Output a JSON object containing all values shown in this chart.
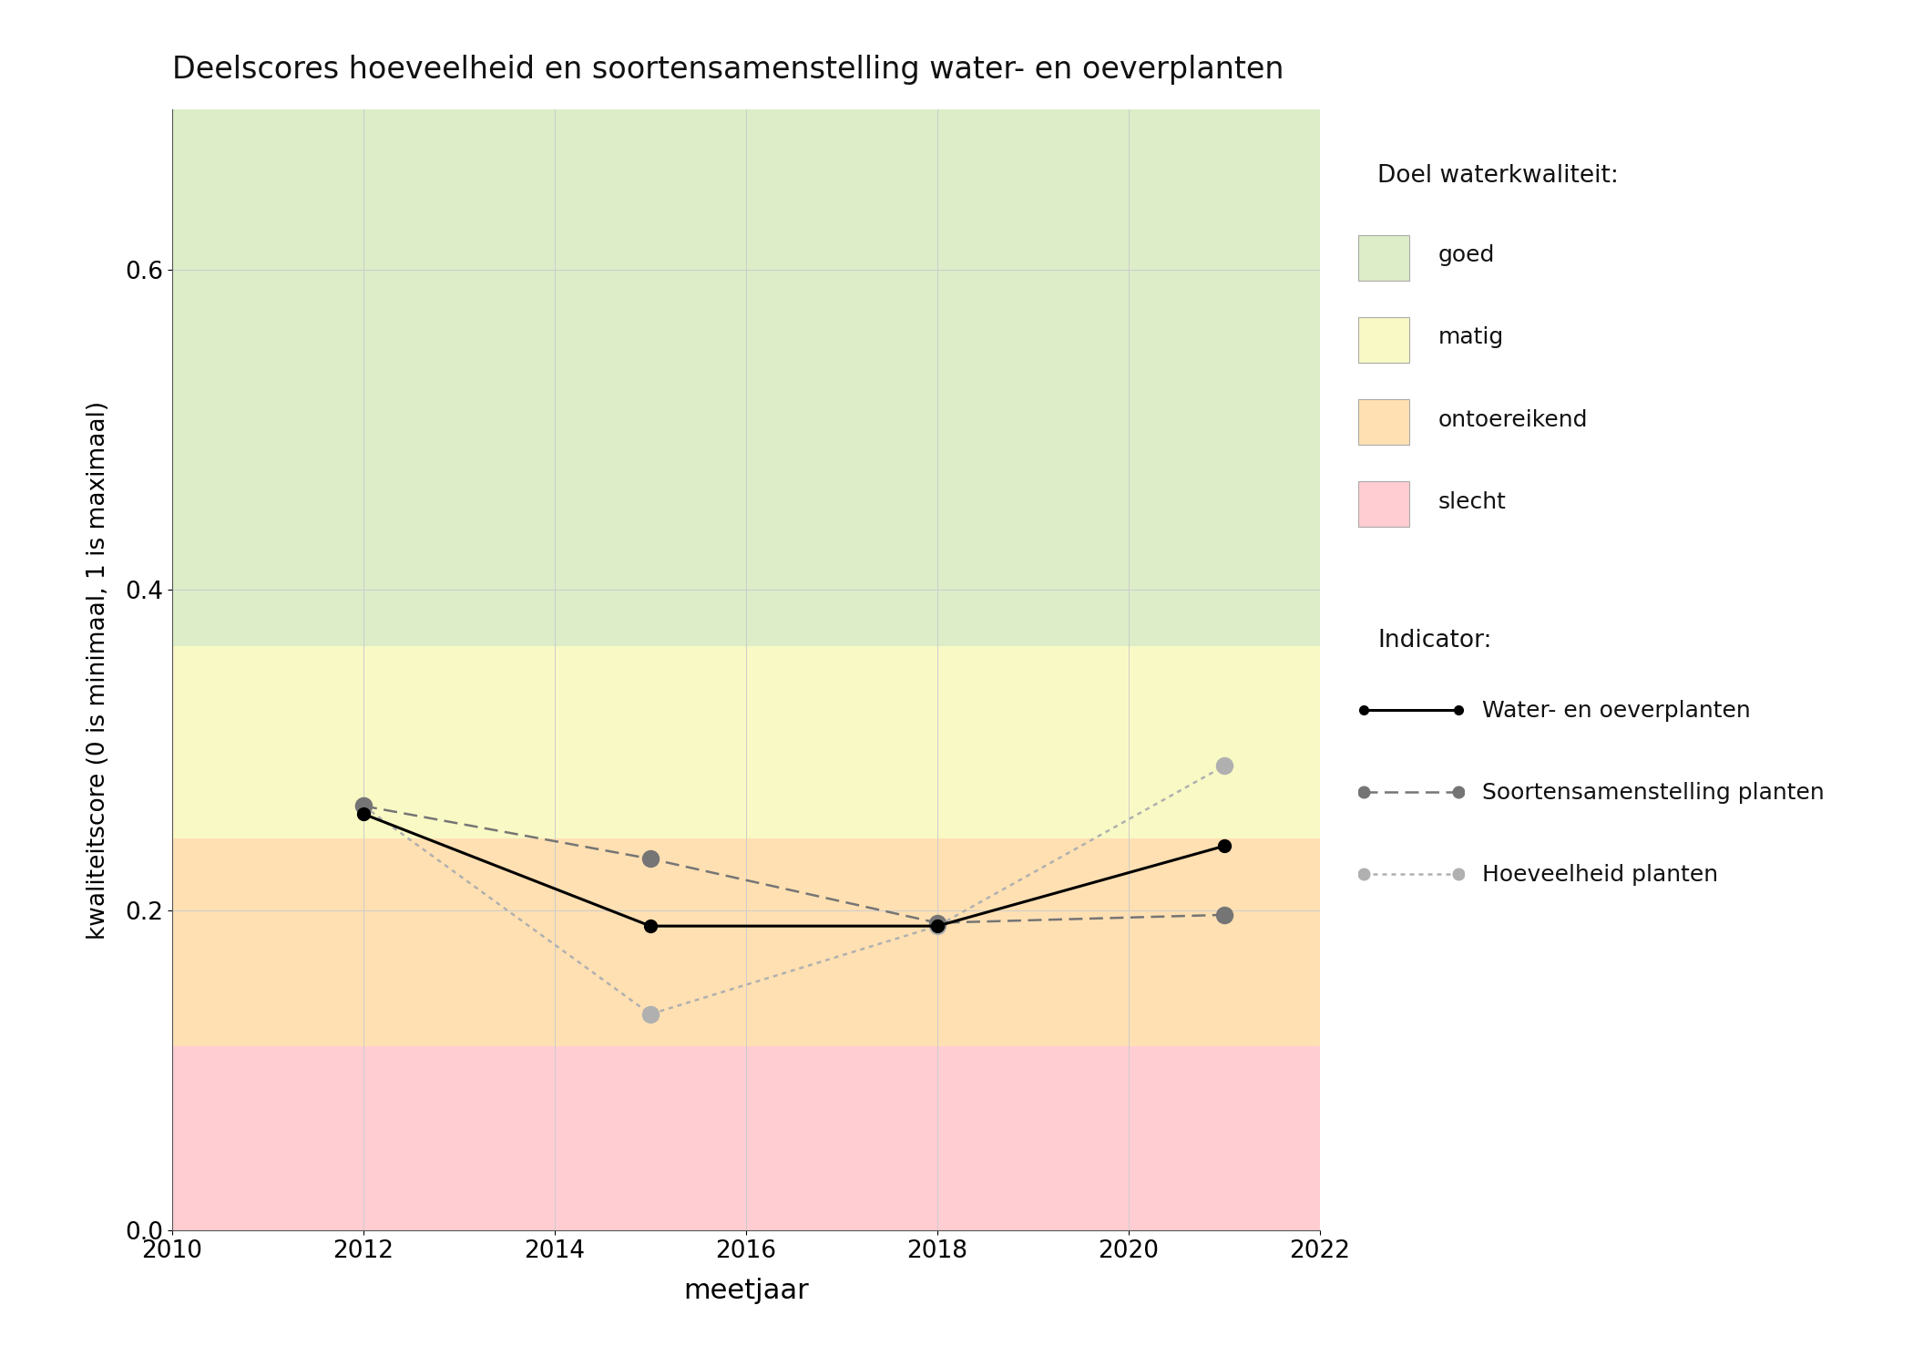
{
  "title": "Deelscores hoeveelheid en soortensamenstelling water- en oeverplanten",
  "xlabel": "meetjaar",
  "ylabel": "kwaliteitscore (0 is minimaal, 1 is maximaal)",
  "xlim": [
    2010,
    2022
  ],
  "ylim": [
    0,
    0.7
  ],
  "yticks": [
    0.0,
    0.2,
    0.4,
    0.6
  ],
  "xticks": [
    2010,
    2012,
    2014,
    2016,
    2018,
    2020,
    2022
  ],
  "bg_color": "#ffffff",
  "plot_bg_color": "#ffffff",
  "quality_bands": [
    {
      "name": "slecht",
      "ymin": 0.0,
      "ymax": 0.115,
      "color": "#ffcdd2"
    },
    {
      "name": "ontoereikend",
      "ymin": 0.115,
      "ymax": 0.245,
      "color": "#ffe0b2"
    },
    {
      "name": "matig",
      "ymin": 0.245,
      "ymax": 0.365,
      "color": "#f9f9c5"
    },
    {
      "name": "goed",
      "ymin": 0.365,
      "ymax": 0.7,
      "color": "#dcedc8"
    }
  ],
  "water_oeverplanten": {
    "years": [
      2012,
      2015,
      2018,
      2021
    ],
    "values": [
      0.26,
      0.19,
      0.19,
      0.24
    ],
    "color": "#000000",
    "linestyle": "solid",
    "linewidth": 2.2,
    "marker": "o",
    "markersize": 10,
    "label": "Water- en oeverplanten"
  },
  "soortensamenstelling": {
    "years": [
      2012,
      2015,
      2018,
      2021
    ],
    "values": [
      0.265,
      0.232,
      0.192,
      0.197
    ],
    "color": "#757575",
    "linestyle": "dashed",
    "linewidth": 1.8,
    "marker": "o",
    "markersize": 13,
    "label": "Soortensamenstelling planten"
  },
  "hoeveelheid": {
    "years": [
      2012,
      2015,
      2018,
      2021
    ],
    "values": [
      0.265,
      0.135,
      0.19,
      0.29
    ],
    "color": "#b0b0b0",
    "linestyle": "dotted",
    "linewidth": 1.8,
    "marker": "o",
    "markersize": 13,
    "label": "Hoeveelheid planten"
  },
  "legend_quality_title": "Doel waterkwaliteit:",
  "legend_indicator_title": "Indicator:",
  "legend_quality_items": [
    {
      "label": "goed",
      "color": "#dcedc8"
    },
    {
      "label": "matig",
      "color": "#f9f9c5"
    },
    {
      "label": "ontoereikend",
      "color": "#ffe0b2"
    },
    {
      "label": "slecht",
      "color": "#ffcdd2"
    }
  ],
  "grid_color": "#cccccc",
  "grid_alpha": 1.0,
  "grid_linewidth": 0.7
}
